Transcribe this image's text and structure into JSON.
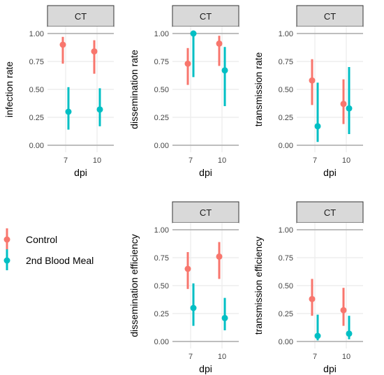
{
  "chart_data": [
    {
      "type": "scatter",
      "panel": "infection-rate",
      "strip": "CT",
      "xlabel": "dpi",
      "ylabel": "infection rate",
      "categories": [
        "7",
        "10"
      ],
      "ylim": [
        0,
        1.0
      ],
      "yticks": [
        "0.00",
        "0.25",
        "0.50",
        "0.75",
        "1.00"
      ],
      "series": [
        {
          "name": "Control",
          "values": [
            0.9,
            0.84
          ],
          "lower": [
            0.73,
            0.64
          ],
          "upper": [
            0.97,
            0.94
          ]
        },
        {
          "name": "2nd Blood Meal",
          "values": [
            0.3,
            0.32
          ],
          "lower": [
            0.14,
            0.17
          ],
          "upper": [
            0.52,
            0.51
          ]
        }
      ]
    },
    {
      "type": "scatter",
      "panel": "dissemination-rate",
      "strip": "CT",
      "xlabel": "dpi",
      "ylabel": "dissemination rate",
      "categories": [
        "7",
        "10"
      ],
      "ylim": [
        0,
        1.0
      ],
      "yticks": [
        "0.00",
        "0.25",
        "0.50",
        "0.75",
        "1.00"
      ],
      "series": [
        {
          "name": "Control",
          "values": [
            0.73,
            0.91
          ],
          "lower": [
            0.54,
            0.71
          ],
          "upper": [
            0.87,
            0.98
          ]
        },
        {
          "name": "2nd Blood Meal",
          "values": [
            1.0,
            0.67
          ],
          "lower": [
            0.61,
            0.35
          ],
          "upper": [
            1.0,
            0.88
          ]
        }
      ]
    },
    {
      "type": "scatter",
      "panel": "transmission-rate",
      "strip": "CT",
      "xlabel": "dpi",
      "ylabel": "transmission rate",
      "categories": [
        "7",
        "10"
      ],
      "ylim": [
        0,
        1.0
      ],
      "yticks": [
        "0.00",
        "0.25",
        "0.50",
        "0.75",
        "1.00"
      ],
      "series": [
        {
          "name": "Control",
          "values": [
            0.58,
            0.37
          ],
          "lower": [
            0.36,
            0.19
          ],
          "upper": [
            0.77,
            0.59
          ]
        },
        {
          "name": "2nd Blood Meal",
          "values": [
            0.17,
            0.33
          ],
          "lower": [
            0.03,
            0.1
          ],
          "upper": [
            0.56,
            0.7
          ]
        }
      ]
    },
    {
      "type": "scatter",
      "panel": "dissemination-efficiency",
      "strip": "CT",
      "xlabel": "dpi",
      "ylabel": "dissemination efficiency",
      "categories": [
        "7",
        "10"
      ],
      "ylim": [
        0,
        1.0
      ],
      "yticks": [
        "0.00",
        "0.25",
        "0.50",
        "0.75",
        "1.00"
      ],
      "series": [
        {
          "name": "Control",
          "values": [
            0.65,
            0.76
          ],
          "lower": [
            0.47,
            0.56
          ],
          "upper": [
            0.8,
            0.89
          ]
        },
        {
          "name": "2nd Blood Meal",
          "values": [
            0.3,
            0.21
          ],
          "lower": [
            0.14,
            0.1
          ],
          "upper": [
            0.52,
            0.39
          ]
        }
      ]
    },
    {
      "type": "scatter",
      "panel": "transmission-efficiency",
      "strip": "CT",
      "xlabel": "dpi",
      "ylabel": "transmission efficiency",
      "categories": [
        "7",
        "10"
      ],
      "ylim": [
        0,
        1.0
      ],
      "yticks": [
        "0.00",
        "0.25",
        "0.50",
        "0.75",
        "1.00"
      ],
      "series": [
        {
          "name": "Control",
          "values": [
            0.38,
            0.28
          ],
          "lower": [
            0.23,
            0.14
          ],
          "upper": [
            0.56,
            0.48
          ]
        },
        {
          "name": "2nd Blood Meal",
          "values": [
            0.05,
            0.07
          ],
          "lower": [
            0.01,
            0.02
          ],
          "upper": [
            0.24,
            0.23
          ]
        }
      ]
    }
  ],
  "legend": {
    "items": [
      {
        "label": "Control",
        "color": "#F8766D"
      },
      {
        "label": "2nd Blood Meal",
        "color": "#00BFC4"
      }
    ]
  },
  "colors": {
    "control": "#F8766D",
    "second_blood_meal": "#00BFC4",
    "strip_fill": "#D9D9D9",
    "grid": "#EBEBEB"
  }
}
